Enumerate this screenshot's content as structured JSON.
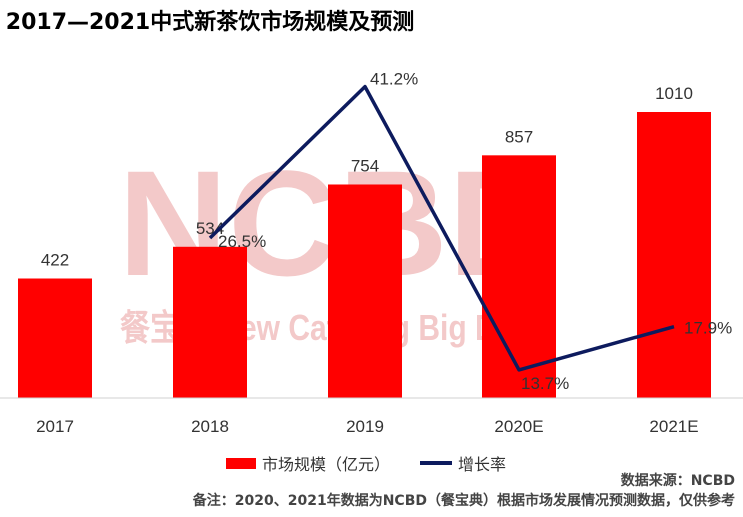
{
  "chart_data": {
    "type": "bar",
    "title": "2017—2021中式新茶饮市场规模及预测",
    "categories": [
      "2017",
      "2018",
      "2019",
      "2020E",
      "2021E"
    ],
    "series": [
      {
        "name": "市场规模（亿元）",
        "type": "bar",
        "values": [
          422,
          534,
          754,
          857,
          1010
        ],
        "labels": [
          "422",
          "534",
          "754",
          "857",
          "1010"
        ]
      },
      {
        "name": "增长率",
        "type": "line",
        "values": [
          null,
          26.5,
          41.2,
          13.7,
          17.9
        ],
        "labels": [
          "",
          "26.5%",
          "41.2%",
          "13.7%",
          "17.9%"
        ]
      }
    ],
    "legend_position": "bottom",
    "grid": false,
    "colors": {
      "bar": "#ff0000",
      "line": "#0d1b5e"
    }
  },
  "watermark": {
    "logo": "NCBD",
    "tagline": "餐宝典 New Catering Big Data"
  },
  "source": "数据来源：NCBD",
  "note": "备注：2020、2021年数据为NCBD（餐宝典）根据市场发展情况预测数据，仅供参考"
}
